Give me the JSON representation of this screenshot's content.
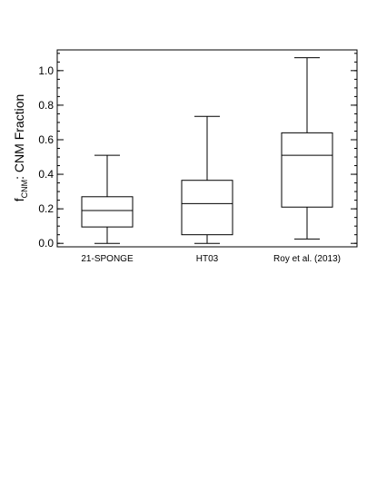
{
  "chart_data": {
    "type": "box",
    "categories": [
      "21-SPONGE",
      "HT03",
      "Roy et al. (2013)"
    ],
    "boxes": [
      {
        "whisker_low": 0.0,
        "q1": 0.095,
        "median": 0.19,
        "q3": 0.27,
        "whisker_high": 0.51
      },
      {
        "whisker_low": 0.0,
        "q1": 0.05,
        "median": 0.23,
        "q3": 0.365,
        "whisker_high": 0.735
      },
      {
        "whisker_low": 0.025,
        "q1": 0.21,
        "median": 0.51,
        "q3": 0.64,
        "whisker_high": 1.075
      }
    ],
    "ylabel_main": "f",
    "ylabel_sub": "CNM",
    "ylabel_rest": ": CNM Fraction",
    "ylim": [
      -0.02,
      1.12
    ],
    "yticks": [
      0.0,
      0.2,
      0.4,
      0.6,
      0.8,
      1.0
    ],
    "ytick_labels": [
      "0.0",
      "0.2",
      "0.4",
      "0.6",
      "0.8",
      "1.0"
    ],
    "minor_tick_step": 0.05,
    "grid": false,
    "legend": "none"
  }
}
